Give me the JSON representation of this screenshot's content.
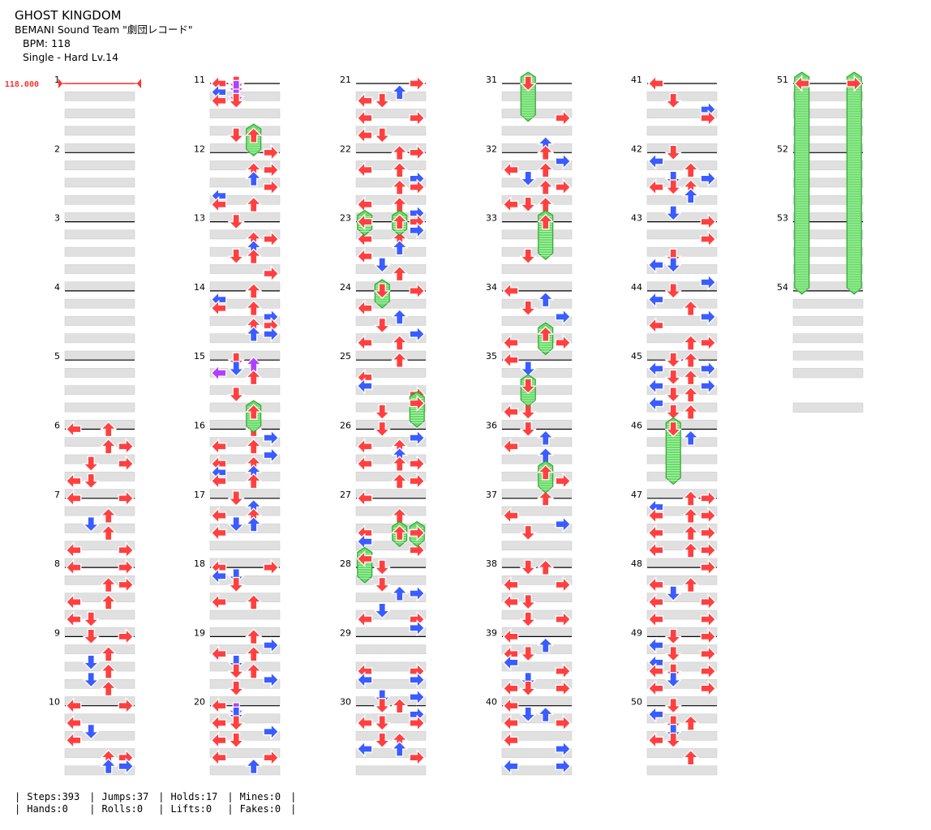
{
  "song": {
    "title": "GHOST KINGDOM",
    "artist": "BEMANI Sound Team \"劇団レコード\"",
    "bpm_label": "BPM: 118",
    "difficulty_label": "Single - Hard  Lv.14"
  },
  "bpm_marker": "118.000",
  "measure_numbers": [
    "1",
    "2",
    "3",
    "4",
    "5",
    "6",
    "7",
    "8",
    "9",
    "10",
    "11",
    "12",
    "13",
    "14",
    "15",
    "16",
    "17",
    "18",
    "19",
    "20",
    "21",
    "22",
    "23",
    "24",
    "25",
    "26",
    "27",
    "28",
    "29",
    "30",
    "31",
    "32",
    "33",
    "34",
    "35",
    "36",
    "37",
    "38",
    "39",
    "40",
    "41",
    "42",
    "43",
    "44",
    "45",
    "46",
    "47",
    "48",
    "49",
    "50",
    "51",
    "52",
    "53",
    "54"
  ],
  "columns": [
    {
      "start": 1,
      "end": 10
    },
    {
      "start": 11,
      "end": 20
    },
    {
      "start": 21,
      "end": 30
    },
    {
      "start": 31,
      "end": 40
    },
    {
      "start": 41,
      "end": 50
    },
    {
      "start": 51,
      "end": 54
    }
  ],
  "colors": {
    "quarter": "#ff4040",
    "eighth": "#3b5cff",
    "sixteenth": "#b040ff",
    "other": "#ff40e0",
    "hold": "#66dd66",
    "band": "#e0e0e0",
    "bpm": "#ff3030"
  },
  "stats": {
    "steps": "Steps:393",
    "jumps": "Jumps:37",
    "holds": "Holds:17",
    "mines": "Mines:0",
    "hands": "Hands:0",
    "rolls": "Rolls:0",
    "lifts": "Lifts:0",
    "fakes": "Fakes:0"
  }
}
